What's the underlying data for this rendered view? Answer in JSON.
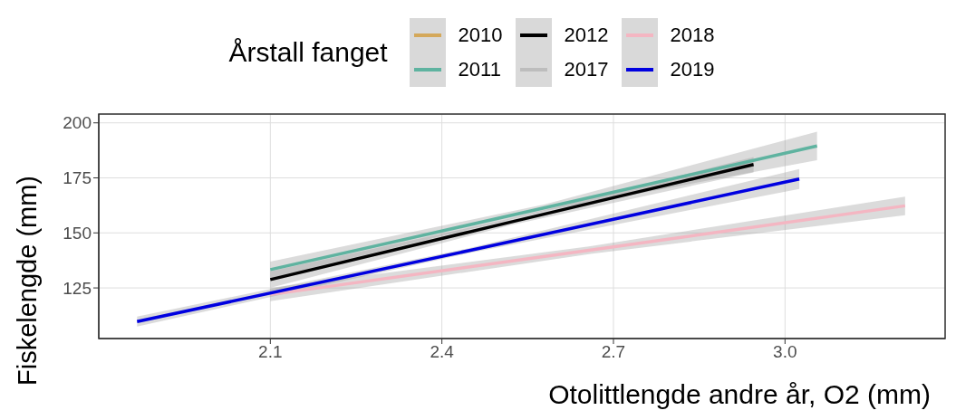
{
  "chart_data": {
    "type": "line",
    "xlabel": "Otolittlengde andre år, O2 (mm)",
    "ylabel": "Fiskelengde (mm)",
    "legend_title": "Årstall fanget",
    "xlim": [
      1.8,
      3.28
    ],
    "xticks": [
      2.1,
      2.4,
      2.7,
      {
        "value": 3,
        "label": "3.0"
      }
    ],
    "ylim": [
      102,
      204
    ],
    "yticks": [
      125,
      150,
      175,
      200
    ],
    "grid": true,
    "legend": "top",
    "line_style": "solid",
    "marker": "none",
    "series": [
      {
        "name": "2010",
        "color": "#d4a85a"
      },
      {
        "name": "2011",
        "color": "#5fb3a0",
        "x": [
          2.1,
          2.58,
          3.056
        ],
        "values": [
          133.3,
          161.4,
          189.5
        ],
        "lower": [
          129.5,
          160,
          183
        ],
        "upper": [
          137,
          163,
          196
        ]
      },
      {
        "name": "2012",
        "color": "#000000",
        "x": [
          2.1,
          2.52,
          2.945
        ],
        "values": [
          128.8,
          154.9,
          181.1
        ],
        "lower": [
          125,
          153.5,
          177.5
        ],
        "upper": [
          132.5,
          156.5,
          184.5
        ]
      },
      {
        "name": "2017",
        "color": "#bdbdbd"
      },
      {
        "name": "2018",
        "color": "#f4b6c2",
        "x": [
          2.1,
          2.66,
          3.21
        ],
        "values": [
          122,
          142.2,
          162.3
        ],
        "lower": [
          119,
          140.5,
          158
        ],
        "upper": [
          125,
          144,
          166.5
        ]
      },
      {
        "name": "2019",
        "color": "#0000e0",
        "x": [
          1.867,
          2.45,
          3.025
        ],
        "values": [
          109.7,
          142.1,
          174.5
        ],
        "lower": [
          107.5,
          141,
          170
        ],
        "upper": [
          112,
          143.2,
          179
        ]
      }
    ]
  }
}
